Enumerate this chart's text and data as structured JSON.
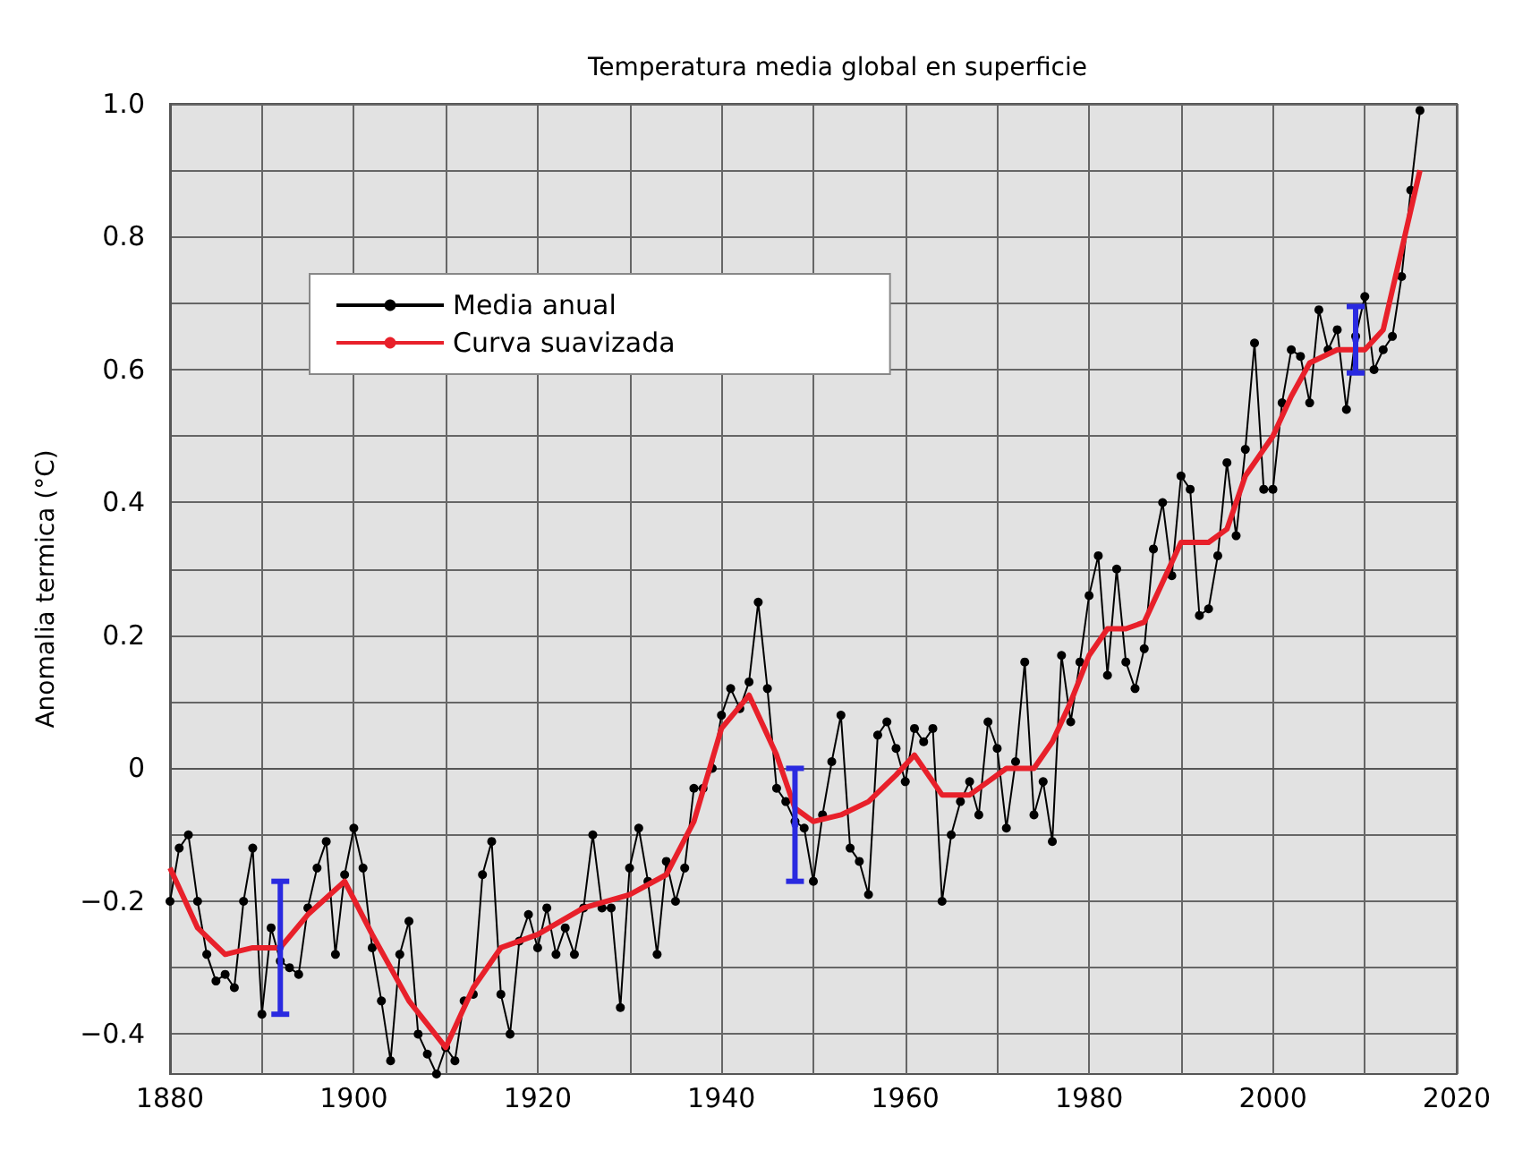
{
  "chart_data": {
    "type": "line",
    "title": "Temperatura media global en superficie",
    "ylabel": "Anomalia termica (°C)",
    "xlim": [
      1880,
      2020
    ],
    "xticks": [
      1880,
      {
        "value": 1890,
        "label": null
      },
      1900,
      {
        "value": 1910,
        "label": null
      },
      1920,
      {
        "value": 1930,
        "label": null
      },
      1940,
      {
        "value": 1950,
        "label": null
      },
      1960,
      {
        "value": 1970,
        "label": null
      },
      1980,
      {
        "value": 1990,
        "label": null
      },
      2000,
      {
        "value": 2010,
        "label": null
      },
      2020
    ],
    "ylim": [
      -0.46,
      1.0
    ],
    "yticks": [
      {
        "value": -0.4,
        "label": "−0.4"
      },
      {
        "value": -0.3,
        "label": null
      },
      {
        "value": -0.2,
        "label": "−0.2"
      },
      {
        "value": -0.1,
        "label": null
      },
      0,
      {
        "value": 0.1,
        "label": null
      },
      {
        "value": 0.2,
        "label": "0.2"
      },
      {
        "value": 0.3,
        "label": null
      },
      {
        "value": 0.4,
        "label": "0.4"
      },
      {
        "value": 0.5,
        "label": null
      },
      {
        "value": 0.6,
        "label": "0.6"
      },
      {
        "value": 0.7,
        "label": null
      },
      {
        "value": 0.8,
        "label": "0.8"
      },
      {
        "value": 0.9,
        "label": null
      },
      {
        "value": 1.0,
        "label": "1.0"
      }
    ],
    "grid": true,
    "legend": "top left",
    "series": [
      {
        "name": "Media anual",
        "color": "#000000",
        "marker": "circle",
        "x": [
          1880,
          1881,
          1882,
          1883,
          1884,
          1885,
          1886,
          1887,
          1888,
          1889,
          1890,
          1891,
          1892,
          1893,
          1894,
          1895,
          1896,
          1897,
          1898,
          1899,
          1900,
          1901,
          1902,
          1903,
          1904,
          1905,
          1906,
          1907,
          1908,
          1909,
          1910,
          1911,
          1912,
          1913,
          1914,
          1915,
          1916,
          1917,
          1918,
          1919,
          1920,
          1921,
          1922,
          1923,
          1924,
          1925,
          1926,
          1927,
          1928,
          1929,
          1930,
          1931,
          1932,
          1933,
          1934,
          1935,
          1936,
          1937,
          1938,
          1939,
          1940,
          1941,
          1942,
          1943,
          1944,
          1945,
          1946,
          1947,
          1948,
          1949,
          1950,
          1951,
          1952,
          1953,
          1954,
          1955,
          1956,
          1957,
          1958,
          1959,
          1960,
          1961,
          1962,
          1963,
          1964,
          1965,
          1966,
          1967,
          1968,
          1969,
          1970,
          1971,
          1972,
          1973,
          1974,
          1975,
          1976,
          1977,
          1978,
          1979,
          1980,
          1981,
          1982,
          1983,
          1984,
          1985,
          1986,
          1987,
          1988,
          1989,
          1990,
          1991,
          1992,
          1993,
          1994,
          1995,
          1996,
          1997,
          1998,
          1999,
          2000,
          2001,
          2002,
          2003,
          2004,
          2005,
          2006,
          2007,
          2008,
          2009,
          2010,
          2011,
          2012,
          2013,
          2014,
          2015,
          2016
        ],
        "values": [
          -0.2,
          -0.12,
          -0.1,
          -0.2,
          -0.28,
          -0.32,
          -0.31,
          -0.33,
          -0.2,
          -0.12,
          -0.37,
          -0.24,
          -0.29,
          -0.3,
          -0.31,
          -0.21,
          -0.15,
          -0.11,
          -0.28,
          -0.16,
          -0.09,
          -0.15,
          -0.27,
          -0.35,
          -0.44,
          -0.28,
          -0.23,
          -0.4,
          -0.43,
          -0.46,
          -0.42,
          -0.44,
          -0.35,
          -0.34,
          -0.16,
          -0.11,
          -0.34,
          -0.4,
          -0.26,
          -0.22,
          -0.27,
          -0.21,
          -0.28,
          -0.24,
          -0.28,
          -0.21,
          -0.1,
          -0.21,
          -0.21,
          -0.36,
          -0.15,
          -0.09,
          -0.17,
          -0.28,
          -0.14,
          -0.2,
          -0.15,
          -0.03,
          -0.03,
          0.0,
          0.08,
          0.12,
          0.09,
          0.13,
          0.25,
          0.12,
          -0.03,
          -0.05,
          -0.08,
          -0.09,
          -0.17,
          -0.07,
          0.01,
          0.08,
          -0.12,
          -0.14,
          -0.19,
          0.05,
          0.07,
          0.03,
          -0.02,
          0.06,
          0.04,
          0.06,
          -0.2,
          -0.1,
          -0.05,
          -0.02,
          -0.07,
          0.07,
          0.03,
          -0.09,
          0.01,
          0.16,
          -0.07,
          -0.02,
          -0.11,
          0.17,
          0.07,
          0.16,
          0.26,
          0.32,
          0.14,
          0.3,
          0.16,
          0.12,
          0.18,
          0.33,
          0.4,
          0.29,
          0.44,
          0.42,
          0.23,
          0.24,
          0.32,
          0.46,
          0.35,
          0.48,
          0.64,
          0.42,
          0.42,
          0.55,
          0.63,
          0.62,
          0.55,
          0.69,
          0.63,
          0.66,
          0.54,
          0.65,
          0.71,
          0.6,
          0.63,
          0.65,
          0.74,
          0.87,
          0.99
        ]
      },
      {
        "name": "Curva suavizada",
        "color": "#e8202a",
        "marker": "none",
        "x": [
          1880,
          1883,
          1886,
          1889,
          1892,
          1895,
          1899,
          1902,
          1906,
          1910,
          1913,
          1916,
          1920,
          1925,
          1930,
          1934,
          1937,
          1940,
          1943,
          1946,
          1948,
          1950,
          1953,
          1956,
          1959,
          1961,
          1964,
          1967,
          1969,
          1971,
          1974,
          1976,
          1978,
          1980,
          1982,
          1984,
          1986,
          1988,
          1990,
          1993,
          1995,
          1997,
          2000,
          2002,
          2004,
          2007,
          2010,
          2012,
          2014,
          2016
        ],
        "values": [
          -0.15,
          -0.24,
          -0.28,
          -0.27,
          -0.27,
          -0.22,
          -0.17,
          -0.25,
          -0.35,
          -0.42,
          -0.33,
          -0.27,
          -0.25,
          -0.21,
          -0.19,
          -0.16,
          -0.08,
          0.06,
          0.11,
          0.02,
          -0.06,
          -0.08,
          -0.07,
          -0.05,
          -0.01,
          0.02,
          -0.04,
          -0.04,
          -0.02,
          0.0,
          0.0,
          0.04,
          0.1,
          0.17,
          0.21,
          0.21,
          0.22,
          0.28,
          0.34,
          0.34,
          0.36,
          0.44,
          0.5,
          0.56,
          0.61,
          0.63,
          0.63,
          0.66,
          0.78,
          0.9
        ]
      },
      {
        "type": "scatter",
        "color": "#2a2ae0",
        "marker": "circle",
        "x": [
          1892,
          1948,
          2009
        ],
        "values": [
          -0.27,
          -0.085,
          0.645
        ],
        "errors": [
          0.1,
          0.085,
          0.05
        ]
      }
    ]
  }
}
